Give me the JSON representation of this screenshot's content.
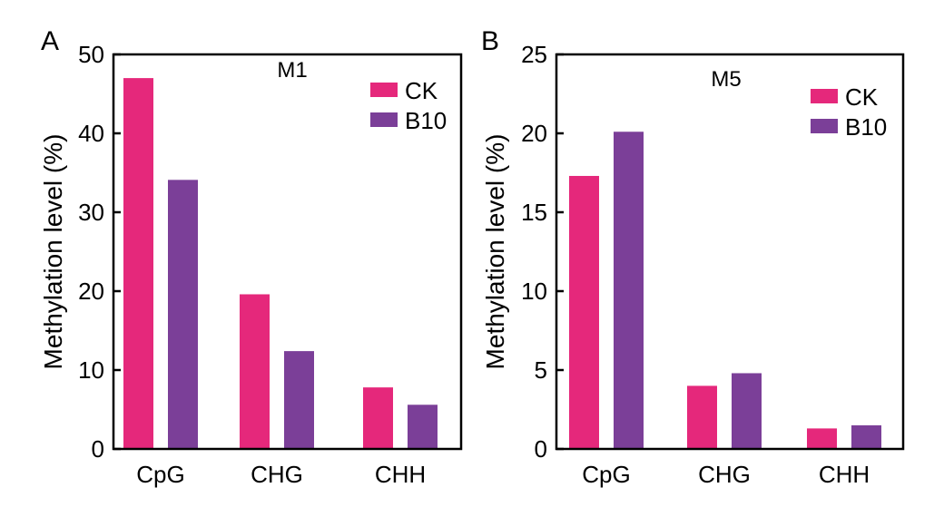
{
  "colors": {
    "ck": "#E5287B",
    "b10": "#7B3F98",
    "axis": "#000000"
  },
  "chart_data": [
    {
      "type": "bar",
      "panel_label": "A",
      "title": "M1",
      "xlabel": "",
      "ylabel": "Methylation level (%)",
      "ylim": [
        0,
        50
      ],
      "yticks": [
        "0",
        "10",
        "20",
        "30",
        "40",
        "50"
      ],
      "categories": [
        "CpG",
        "CHG",
        "CHH"
      ],
      "series": [
        {
          "name": "CK",
          "values": [
            47.0,
            19.6,
            7.8
          ]
        },
        {
          "name": "B10",
          "values": [
            34.1,
            12.4,
            5.6
          ]
        }
      ],
      "legend_position": "top-right",
      "grid": false
    },
    {
      "type": "bar",
      "panel_label": "B",
      "title": "M5",
      "xlabel": "",
      "ylabel": "Methylation level (%)",
      "ylim": [
        0,
        25
      ],
      "yticks": [
        "0",
        "5",
        "10",
        "15",
        "20",
        "25"
      ],
      "categories": [
        "CpG",
        "CHG",
        "CHH"
      ],
      "series": [
        {
          "name": "CK",
          "values": [
            17.3,
            4.0,
            1.3
          ]
        },
        {
          "name": "B10",
          "values": [
            20.1,
            4.8,
            1.5
          ]
        }
      ],
      "legend_position": "top-right",
      "grid": false
    }
  ]
}
